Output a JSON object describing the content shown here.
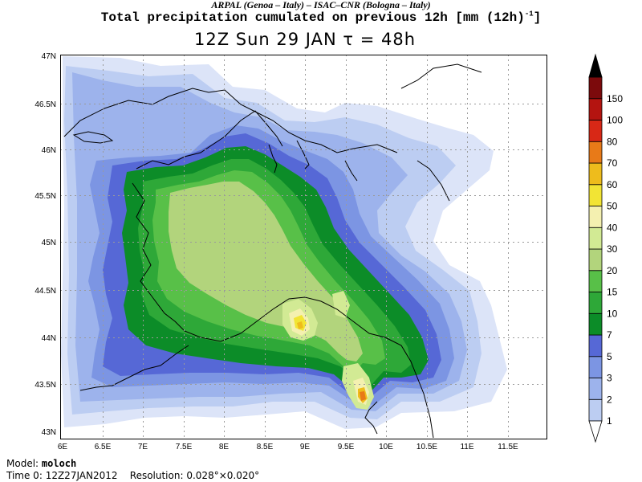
{
  "header": {
    "credit": "ARPAL (Genoa – Italy)  –  ISAC–CNR (Bologna – Italy)",
    "title": "Total precipitation cumulated on previous 12h [mm (12h)",
    "title_sup": "-1",
    "title_close": "]",
    "subtitle": "12Z Sun 29 JAN  τ = 48h"
  },
  "map": {
    "lat_ticks": [
      "47N",
      "46.5N",
      "46N",
      "45.5N",
      "45N",
      "44.5N",
      "44N",
      "43.5N",
      "43N"
    ],
    "lon_ticks": [
      "6E",
      "6.5E",
      "7E",
      "7.5E",
      "8E",
      "8.5E",
      "9E",
      "9.5E",
      "10E",
      "10.5E",
      "11E",
      "11.5E"
    ],
    "lat_range": [
      43,
      47
    ],
    "lon_range": [
      6,
      12
    ]
  },
  "colorbar": {
    "levels": [
      "1",
      "2",
      "3",
      "5",
      "7",
      "10",
      "15",
      "20",
      "30",
      "40",
      "50",
      "60",
      "70",
      "80",
      "100",
      "150"
    ],
    "colors": [
      "#dce4f8",
      "#bccdf2",
      "#9db3ec",
      "#7c95e3",
      "#5668d6",
      "#0c8c28",
      "#2ea838",
      "#58c048",
      "#b2d47c",
      "#d2ea94",
      "#f4f0b0",
      "#f2e434",
      "#eebc1c",
      "#e87a18",
      "#d82816",
      "#b41410",
      "#7c0a0c",
      "#000000"
    ]
  },
  "footer": {
    "model_label": "Model:",
    "model_value": "moloch",
    "time_label": "Time 0:",
    "time_value": "12Z27JAN2012",
    "resolution_label": "Resolution:",
    "resolution_value": "0.028°×0.020°"
  }
}
